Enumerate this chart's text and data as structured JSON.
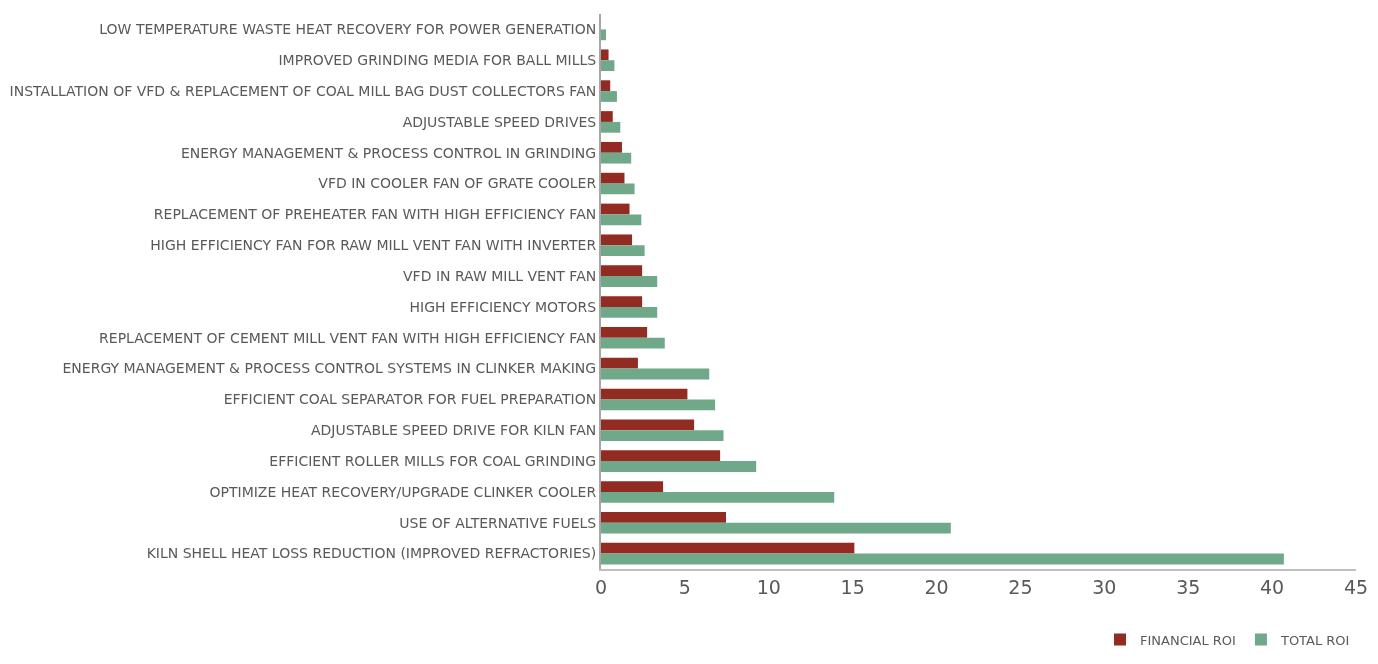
{
  "chart_data": {
    "type": "bar",
    "orientation": "horizontal",
    "categories": [
      "LOW TEMPERATURE WASTE HEAT RECOVERY FOR POWER GENERATION",
      "IMPROVED GRINDING MEDIA FOR BALL MILLS",
      "INSTALLATION OF VFD & REPLACEMENT OF COAL MILL BAG DUST COLLECTORS FAN",
      "ADJUSTABLE SPEED DRIVES",
      "ENERGY MANAGEMENT & PROCESS CONTROL IN GRINDING",
      "VFD IN COOLER FAN OF GRATE COOLER",
      "REPLACEMENT OF PREHEATER FAN WITH HIGH EFFICIENCY FAN",
      "HIGH EFFICIENCY FAN FOR RAW MILL VENT FAN WITH INVERTER",
      "VFD IN RAW MILL VENT FAN",
      "HIGH EFFICIENCY MOTORS",
      "REPLACEMENT OF CEMENT MILL VENT FAN WITH HIGH EFFICIENCY FAN",
      "ENERGY MANAGEMENT & PROCESS CONTROL SYSTEMS IN CLINKER MAKING",
      "EFFICIENT COAL SEPARATOR FOR FUEL PREPARATION",
      "ADJUSTABLE SPEED DRIVE FOR KILN FAN",
      "EFFICIENT ROLLER MILLS FOR COAL GRINDING",
      "OPTIMIZE HEAT RECOVERY/UPGRADE CLINKER COOLER",
      "USE OF ALTERNATIVE FUELS",
      "KILN SHELL HEAT LOSS REDUCTION (IMPROVED REFRACTORIES)"
    ],
    "series": [
      {
        "name": "FINANCIAL ROI",
        "color": "#922b21",
        "values": [
          null,
          0.45,
          0.55,
          0.7,
          1.25,
          1.4,
          1.7,
          1.85,
          2.45,
          2.45,
          2.75,
          2.2,
          5.15,
          5.55,
          7.1,
          3.7,
          7.45,
          15.1
        ]
      },
      {
        "name": "TOTAL ROI",
        "color": "#70a88a",
        "values": [
          0.3,
          0.8,
          0.95,
          1.15,
          1.8,
          2.0,
          2.4,
          2.6,
          3.35,
          3.35,
          3.8,
          6.45,
          6.8,
          7.3,
          9.25,
          13.9,
          20.85,
          40.7
        ]
      }
    ],
    "xlim": [
      0,
      45
    ],
    "xticks": [
      0,
      5,
      10,
      15,
      20,
      25,
      30,
      35,
      40,
      45
    ],
    "grid": false,
    "legend": "bottom right"
  }
}
